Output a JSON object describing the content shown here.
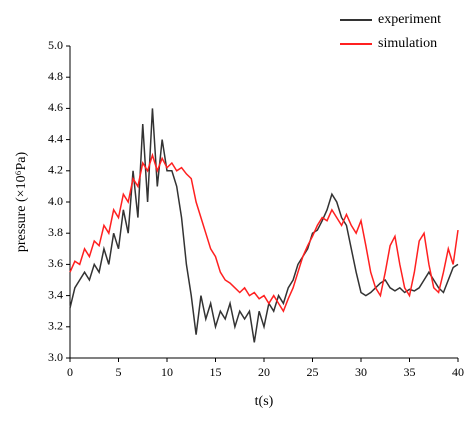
{
  "chart_data": {
    "type": "line",
    "xlabel": "t(s)",
    "ylabel": "pressure (×10⁶Pa)",
    "x": [
      0,
      0.5,
      1,
      1.5,
      2,
      2.5,
      3,
      3.5,
      4,
      4.5,
      5,
      5.5,
      6,
      6.5,
      7,
      7.5,
      8,
      8.5,
      9,
      9.5,
      10,
      10.5,
      11,
      11.5,
      12,
      12.5,
      13,
      13.5,
      14,
      14.5,
      15,
      15.5,
      16,
      16.5,
      17,
      17.5,
      18,
      18.5,
      19,
      19.5,
      20,
      20.5,
      21,
      21.5,
      22,
      22.5,
      23,
      23.5,
      24,
      24.5,
      25,
      25.5,
      26,
      26.5,
      27,
      27.5,
      28,
      28.5,
      29,
      29.5,
      30,
      30.5,
      31,
      31.5,
      32,
      32.5,
      33,
      33.5,
      34,
      34.5,
      35,
      35.5,
      36,
      36.5,
      37,
      37.5,
      38,
      38.5,
      39,
      39.5,
      40
    ],
    "series": [
      {
        "name": "experiment",
        "color": "#333333",
        "values": [
          3.32,
          3.45,
          3.5,
          3.55,
          3.5,
          3.6,
          3.55,
          3.7,
          3.6,
          3.8,
          3.7,
          3.95,
          3.8,
          4.2,
          3.9,
          4.5,
          4.0,
          4.6,
          4.1,
          4.4,
          4.2,
          4.2,
          4.1,
          3.9,
          3.6,
          3.4,
          3.15,
          3.4,
          3.25,
          3.35,
          3.2,
          3.3,
          3.25,
          3.35,
          3.2,
          3.3,
          3.25,
          3.3,
          3.1,
          3.3,
          3.2,
          3.35,
          3.3,
          3.4,
          3.35,
          3.45,
          3.5,
          3.6,
          3.65,
          3.7,
          3.8,
          3.82,
          3.88,
          3.95,
          4.05,
          4.0,
          3.9,
          3.85,
          3.7,
          3.55,
          3.42,
          3.4,
          3.42,
          3.45,
          3.48,
          3.5,
          3.45,
          3.43,
          3.45,
          3.42,
          3.44,
          3.43,
          3.45,
          3.5,
          3.55,
          3.5,
          3.45,
          3.42,
          3.5,
          3.58,
          3.6
        ]
      },
      {
        "name": "simulation",
        "color": "#ff2020",
        "values": [
          3.55,
          3.62,
          3.6,
          3.7,
          3.65,
          3.75,
          3.72,
          3.85,
          3.8,
          3.95,
          3.9,
          4.05,
          4.0,
          4.15,
          4.1,
          4.25,
          4.2,
          4.3,
          4.2,
          4.28,
          4.22,
          4.25,
          4.2,
          4.22,
          4.18,
          4.15,
          4.0,
          3.9,
          3.8,
          3.7,
          3.65,
          3.55,
          3.5,
          3.48,
          3.45,
          3.42,
          3.45,
          3.4,
          3.42,
          3.38,
          3.4,
          3.35,
          3.4,
          3.35,
          3.3,
          3.38,
          3.45,
          3.55,
          3.65,
          3.72,
          3.78,
          3.85,
          3.9,
          3.88,
          3.95,
          3.9,
          3.85,
          3.92,
          3.85,
          3.8,
          3.88,
          3.72,
          3.55,
          3.45,
          3.4,
          3.55,
          3.72,
          3.78,
          3.6,
          3.45,
          3.4,
          3.55,
          3.75,
          3.8,
          3.6,
          3.45,
          3.42,
          3.55,
          3.7,
          3.6,
          3.82
        ]
      }
    ],
    "xlim": [
      0,
      40
    ],
    "xticks": [
      0,
      5,
      10,
      15,
      20,
      25,
      30,
      35,
      40
    ],
    "ylim": [
      3,
      5
    ],
    "yticks": [
      {
        "value": 3,
        "label": "3.0"
      },
      3.2,
      3.4,
      3.6,
      3.8,
      {
        "value": 4,
        "label": "4.0"
      },
      4.2,
      4.4,
      4.6,
      4.8,
      {
        "value": 5,
        "label": "5.0"
      }
    ],
    "legend": "upper right"
  }
}
